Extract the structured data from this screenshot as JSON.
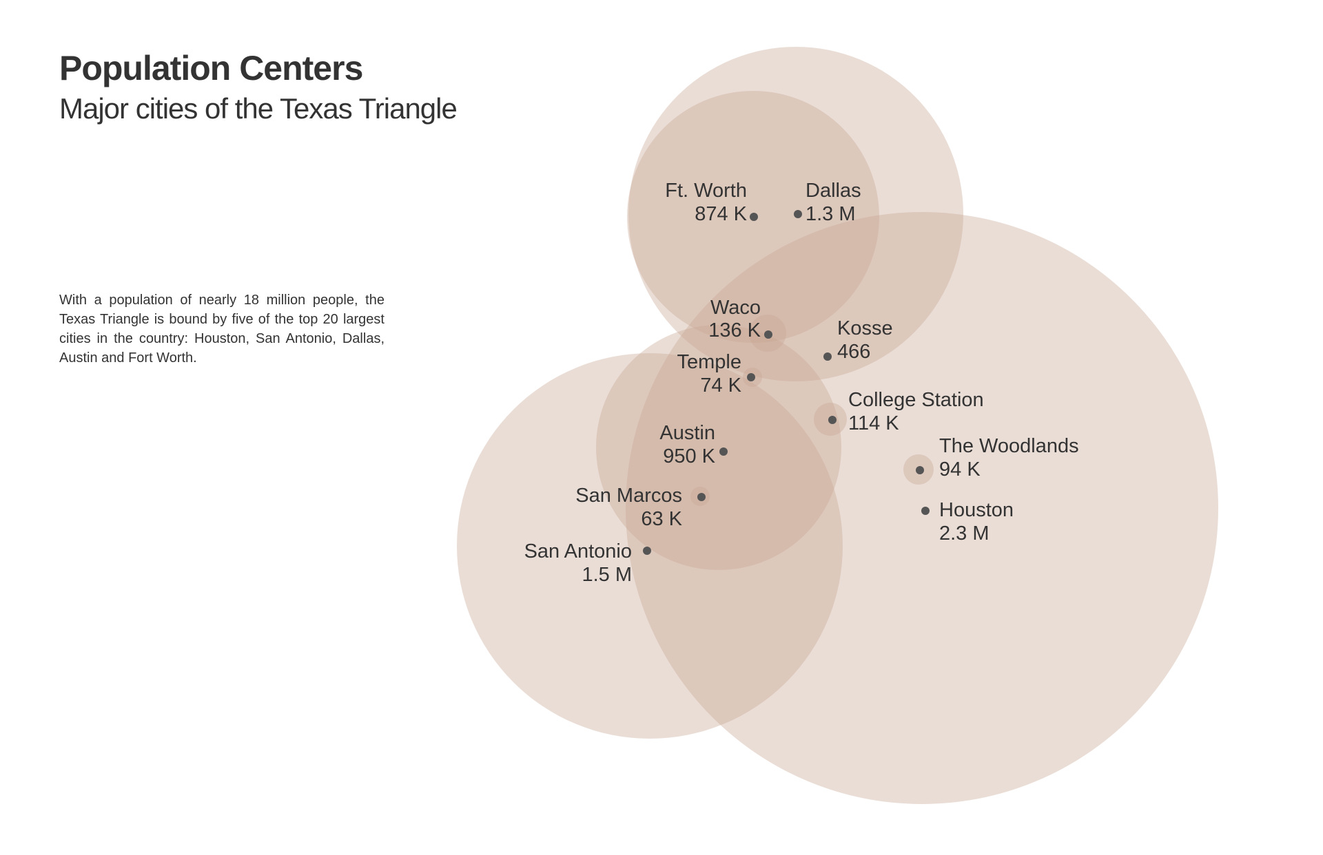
{
  "title": "Population Centers",
  "subtitle": "Major cities of the Texas Triangle",
  "description": "With a population of nearly 18 million people, the Texas Triangle is bound by five of the top 20 largest cities in the country: Houston, San Antonio, Dallas, Austin and Fort Worth.",
  "colors": {
    "circle_fill": "#c8a593",
    "dot": "#555555",
    "text": "#333333"
  },
  "cities": [
    {
      "name": "Ft. Worth",
      "population": "874 K"
    },
    {
      "name": "Dallas",
      "population": "1.3 M"
    },
    {
      "name": "Waco",
      "population": "136 K"
    },
    {
      "name": "Kosse",
      "population": "466"
    },
    {
      "name": "Temple",
      "population": "74 K"
    },
    {
      "name": "College Station",
      "population": "114 K"
    },
    {
      "name": "Austin",
      "population": "950 K"
    },
    {
      "name": "The Woodlands",
      "population": "94 K"
    },
    {
      "name": "San Marcos",
      "population": "63 K"
    },
    {
      "name": "Houston",
      "population": "2.3 M"
    },
    {
      "name": "San Antonio",
      "population": "1.5 M"
    }
  ]
}
